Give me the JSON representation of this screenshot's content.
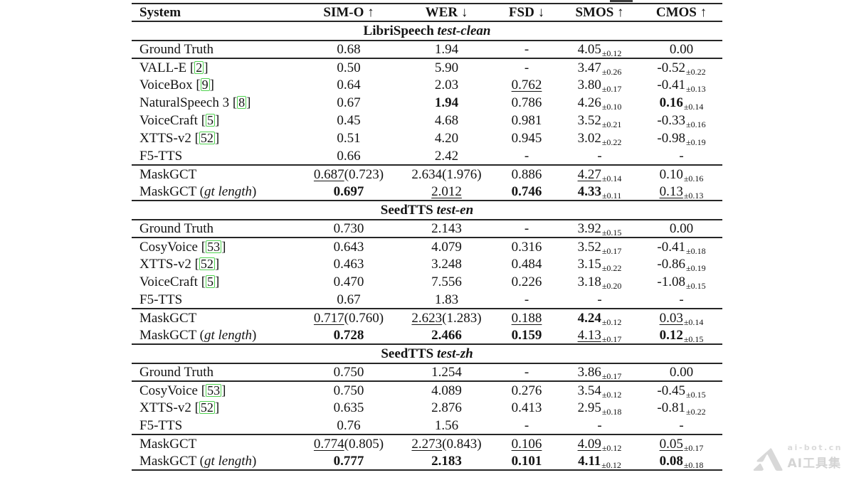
{
  "table": {
    "columns": [
      {
        "label": "System",
        "arrow": ""
      },
      {
        "label": "SIM-O",
        "arrow": "↑"
      },
      {
        "label": "WER",
        "arrow": "↓"
      },
      {
        "label": "FSD",
        "arrow": "↓"
      },
      {
        "label": "SMOS",
        "arrow": "↑"
      },
      {
        "label": "CMOS",
        "arrow": "↑"
      }
    ],
    "gt_length_label": "gt length",
    "cite_box_color": "#4fd24f",
    "sections": [
      {
        "title": "LibriSpeech",
        "title_italic": "test-clean",
        "groups": [
          [
            {
              "system": "Ground Truth",
              "cells": [
                {
                  "m": "0.68"
                },
                {
                  "m": "1.94"
                },
                {
                  "m": "-"
                },
                {
                  "m": "4.05",
                  "sub": "±0.12"
                },
                {
                  "m": "0.00"
                }
              ]
            }
          ],
          [
            {
              "system": "VALL-E",
              "cite": "2",
              "cells": [
                {
                  "m": "0.50"
                },
                {
                  "m": "5.90"
                },
                {
                  "m": "-"
                },
                {
                  "m": "3.47",
                  "sub": "±0.26"
                },
                {
                  "m": "-0.52",
                  "sub": "±0.22"
                }
              ]
            },
            {
              "system": "VoiceBox",
              "cite": "9",
              "cells": [
                {
                  "m": "0.64"
                },
                {
                  "m": "2.03"
                },
                {
                  "m": "0.762",
                  "s": "u"
                },
                {
                  "m": "3.80",
                  "sub": "±0.17"
                },
                {
                  "m": "-0.41",
                  "sub": "±0.13"
                }
              ]
            },
            {
              "system": "NaturalSpeech 3",
              "cite": "8",
              "cells": [
                {
                  "m": "0.67"
                },
                {
                  "m": "1.94",
                  "s": "b"
                },
                {
                  "m": "0.786"
                },
                {
                  "m": "4.26",
                  "sub": "±0.10"
                },
                {
                  "m": "0.16",
                  "s": "b",
                  "sub": "±0.14"
                }
              ]
            },
            {
              "system": "VoiceCraft",
              "cite": "5",
              "cells": [
                {
                  "m": "0.45"
                },
                {
                  "m": "4.68"
                },
                {
                  "m": "0.981"
                },
                {
                  "m": "3.52",
                  "sub": "±0.21"
                },
                {
                  "m": "-0.33",
                  "sub": "±0.16"
                }
              ]
            },
            {
              "system": "XTTS-v2",
              "cite": "52",
              "cells": [
                {
                  "m": "0.51"
                },
                {
                  "m": "4.20"
                },
                {
                  "m": "0.945"
                },
                {
                  "m": "3.02",
                  "sub": "±0.22"
                },
                {
                  "m": "-0.98",
                  "sub": "±0.19"
                }
              ]
            },
            {
              "system": "F5-TTS",
              "cells": [
                {
                  "m": "0.66"
                },
                {
                  "m": "2.42"
                },
                {
                  "m": "-"
                },
                {
                  "m": "-"
                },
                {
                  "m": "-"
                }
              ]
            }
          ],
          [
            {
              "system": "MaskGCT",
              "cells": [
                {
                  "m": "0.687",
                  "s": "u",
                  "p": "(0.723)"
                },
                {
                  "m": "2.634",
                  "p": "(1.976)"
                },
                {
                  "m": "0.886"
                },
                {
                  "m": "4.27",
                  "s": "u",
                  "sub": "±0.14"
                },
                {
                  "m": "0.10",
                  "sub": "±0.16"
                }
              ]
            },
            {
              "system": "MaskGCT",
              "gt": true,
              "cells": [
                {
                  "m": "0.697",
                  "s": "b"
                },
                {
                  "m": "2.012",
                  "s": "u"
                },
                {
                  "m": "0.746",
                  "s": "b"
                },
                {
                  "m": "4.33",
                  "s": "b",
                  "sub": "±0.11"
                },
                {
                  "m": "0.13",
                  "s": "u",
                  "sub": "±0.13"
                }
              ]
            }
          ]
        ]
      },
      {
        "title": "SeedTTS",
        "title_italic": "test-en",
        "groups": [
          [
            {
              "system": "Ground Truth",
              "cells": [
                {
                  "m": "0.730"
                },
                {
                  "m": "2.143"
                },
                {
                  "m": "-"
                },
                {
                  "m": "3.92",
                  "sub": "±0.15"
                },
                {
                  "m": "0.00"
                }
              ]
            }
          ],
          [
            {
              "system": "CosyVoice",
              "cite": "53",
              "cells": [
                {
                  "m": "0.643"
                },
                {
                  "m": "4.079"
                },
                {
                  "m": "0.316"
                },
                {
                  "m": "3.52",
                  "sub": "±0.17"
                },
                {
                  "m": "-0.41",
                  "sub": "±0.18"
                }
              ]
            },
            {
              "system": "XTTS-v2",
              "cite": "52",
              "cells": [
                {
                  "m": "0.463"
                },
                {
                  "m": "3.248"
                },
                {
                  "m": "0.484"
                },
                {
                  "m": "3.15",
                  "sub": "±0.22"
                },
                {
                  "m": "-0.86",
                  "sub": "±0.19"
                }
              ]
            },
            {
              "system": "VoiceCraft",
              "cite": "5",
              "cells": [
                {
                  "m": "0.470"
                },
                {
                  "m": "7.556"
                },
                {
                  "m": "0.226"
                },
                {
                  "m": "3.18",
                  "sub": "±0.20"
                },
                {
                  "m": "-1.08",
                  "sub": "±0.15"
                }
              ]
            },
            {
              "system": "F5-TTS",
              "cells": [
                {
                  "m": "0.67"
                },
                {
                  "m": "1.83"
                },
                {
                  "m": "-"
                },
                {
                  "m": "-"
                },
                {
                  "m": "-"
                }
              ]
            }
          ],
          [
            {
              "system": "MaskGCT",
              "cells": [
                {
                  "m": "0.717",
                  "s": "u",
                  "p": "(0.760)"
                },
                {
                  "m": "2.623",
                  "s": "u",
                  "p": "(1.283)"
                },
                {
                  "m": "0.188",
                  "s": "u"
                },
                {
                  "m": "4.24",
                  "s": "b",
                  "sub": "±0.12"
                },
                {
                  "m": "0.03",
                  "s": "u",
                  "sub": "±0.14"
                }
              ]
            },
            {
              "system": "MaskGCT",
              "gt": true,
              "cells": [
                {
                  "m": "0.728",
                  "s": "b"
                },
                {
                  "m": "2.466",
                  "s": "b"
                },
                {
                  "m": "0.159",
                  "s": "b"
                },
                {
                  "m": "4.13",
                  "s": "u",
                  "sub": "±0.17"
                },
                {
                  "m": "0.12",
                  "s": "b",
                  "sub": "±0.15"
                }
              ]
            }
          ]
        ]
      },
      {
        "title": "SeedTTS",
        "title_italic": "test-zh",
        "groups": [
          [
            {
              "system": "Ground Truth",
              "cells": [
                {
                  "m": "0.750"
                },
                {
                  "m": "1.254"
                },
                {
                  "m": "-"
                },
                {
                  "m": "3.86",
                  "sub": "±0.17"
                },
                {
                  "m": "0.00"
                }
              ]
            }
          ],
          [
            {
              "system": "CosyVoice",
              "cite": "53",
              "cells": [
                {
                  "m": "0.750"
                },
                {
                  "m": "4.089"
                },
                {
                  "m": "0.276"
                },
                {
                  "m": "3.54",
                  "sub": "±0.12"
                },
                {
                  "m": "-0.45",
                  "sub": "±0.15"
                }
              ]
            },
            {
              "system": "XTTS-v2",
              "cite": "52",
              "cells": [
                {
                  "m": "0.635"
                },
                {
                  "m": "2.876"
                },
                {
                  "m": "0.413"
                },
                {
                  "m": "2.95",
                  "sub": "±0.18"
                },
                {
                  "m": "-0.81",
                  "sub": "±0.22"
                }
              ]
            },
            {
              "system": "F5-TTS",
              "cells": [
                {
                  "m": "0.76"
                },
                {
                  "m": "1.56"
                },
                {
                  "m": "-"
                },
                {
                  "m": "-"
                },
                {
                  "m": "-"
                }
              ]
            }
          ],
          [
            {
              "system": "MaskGCT",
              "cells": [
                {
                  "m": "0.774",
                  "s": "u",
                  "p": "(0.805)"
                },
                {
                  "m": "2.273",
                  "s": "u",
                  "p": "(0.843)"
                },
                {
                  "m": "0.106",
                  "s": "u"
                },
                {
                  "m": "4.09",
                  "s": "u",
                  "sub": "±0.12"
                },
                {
                  "m": "0.05",
                  "s": "u",
                  "sub": "±0.17"
                }
              ]
            },
            {
              "system": "MaskGCT",
              "gt": true,
              "cells": [
                {
                  "m": "0.777",
                  "s": "b"
                },
                {
                  "m": "2.183",
                  "s": "b"
                },
                {
                  "m": "0.101",
                  "s": "b"
                },
                {
                  "m": "4.11",
                  "s": "b",
                  "sub": "±0.12"
                },
                {
                  "m": "0.08",
                  "s": "b",
                  "sub": "±0.18"
                }
              ]
            }
          ]
        ]
      }
    ]
  },
  "watermark": {
    "line1": "ai-bot.cn",
    "line2": "AI工具集"
  }
}
